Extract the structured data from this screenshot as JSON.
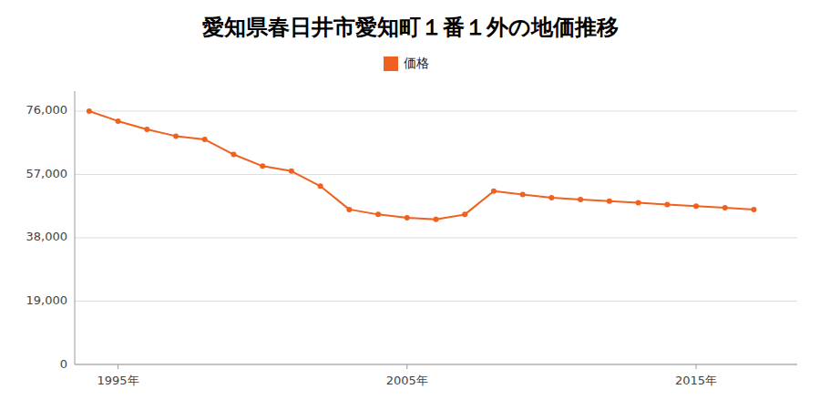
{
  "chart_data": {
    "type": "line",
    "title": "愛知県春日井市愛知町１番１外の地価推移",
    "x": [
      1994,
      1995,
      1996,
      1997,
      1998,
      1999,
      2000,
      2001,
      2002,
      2003,
      2004,
      2005,
      2006,
      2007,
      2008,
      2009,
      2010,
      2011,
      2012,
      2013,
      2014,
      2015,
      2016,
      2017
    ],
    "series": [
      {
        "name": "価格",
        "color": "#f0601e",
        "marker": "circle",
        "values": [
          76000,
          73000,
          70500,
          68500,
          67500,
          63000,
          59500,
          58000,
          53500,
          46500,
          45000,
          44000,
          43500,
          45000,
          52000,
          51000,
          50000,
          49500,
          49000,
          48500,
          48000,
          47500,
          47000,
          46500
        ]
      }
    ],
    "xlim": [
      1993.5,
      2018.5
    ],
    "xticks": [
      {
        "value": 1995,
        "label": "1995年"
      },
      {
        "value": 2005,
        "label": "2005年"
      },
      {
        "value": 2015,
        "label": "2015年"
      }
    ],
    "ylim": [
      0,
      82000
    ],
    "yticks": [
      0,
      {
        "value": 19000,
        "label": "19,000"
      },
      {
        "value": 38000,
        "label": "38,000"
      },
      {
        "value": 57000,
        "label": "57,000"
      },
      {
        "value": 76000,
        "label": "76,000"
      }
    ],
    "grid": "y",
    "legend": "top"
  }
}
